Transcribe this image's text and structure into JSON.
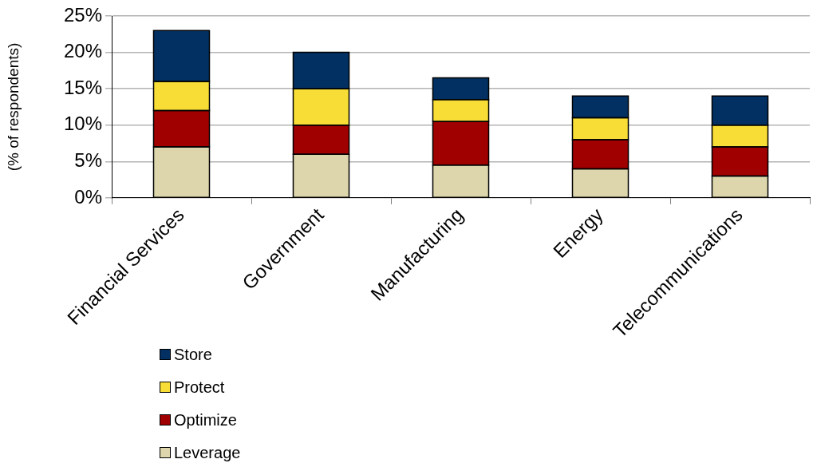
{
  "chart_data": {
    "type": "bar",
    "ylabel": "(% of respondents)",
    "categories": [
      "Financial Services",
      "Government",
      "Manufacturing",
      "Energy",
      "Telecommunications"
    ],
    "stacked": true,
    "series": [
      {
        "name": "Leverage",
        "color": "#ddd6ac",
        "values": [
          7,
          6,
          4.5,
          4,
          3
        ]
      },
      {
        "name": "Optimize",
        "color": "#a00000",
        "values": [
          5,
          4,
          6,
          4,
          4
        ]
      },
      {
        "name": "Protect",
        "color": "#f7dd36",
        "values": [
          4,
          5,
          3,
          3,
          3
        ]
      },
      {
        "name": "Store",
        "color": "#023062",
        "values": [
          7,
          5,
          3,
          3,
          4
        ]
      }
    ],
    "ylim": [
      0,
      25
    ],
    "yticks": [
      {
        "value": 0,
        "label": "0%"
      },
      {
        "value": 5,
        "label": "5%"
      },
      {
        "value": 10,
        "label": "10%"
      },
      {
        "value": 15,
        "label": "15%"
      },
      {
        "value": 20,
        "label": "20%"
      },
      {
        "value": 25,
        "label": "25%"
      }
    ],
    "grid": "y",
    "legend": "bottom left"
  }
}
